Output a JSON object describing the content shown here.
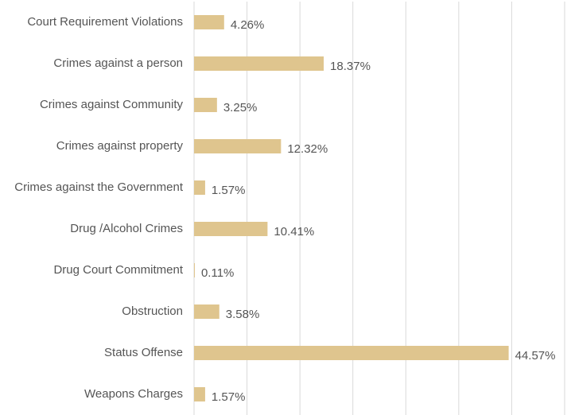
{
  "chart_data": {
    "type": "bar",
    "orientation": "horizontal",
    "categories": [
      "Court Requirement Violations",
      "Crimes against a person",
      "Crimes against Community",
      "Crimes against property",
      "Crimes against the Government",
      "Drug /Alcohol Crimes",
      "Drug Court Commitment",
      "Obstruction",
      "Status Offense",
      "Weapons Charges"
    ],
    "values": [
      4.26,
      18.37,
      3.25,
      12.32,
      1.57,
      10.41,
      0.11,
      3.58,
      44.57,
      1.57
    ],
    "value_labels": [
      "4.26%",
      "18.37%",
      "3.25%",
      "12.32%",
      "1.57%",
      "10.41%",
      "0.11%",
      "3.58%",
      "44.57%",
      "1.57%"
    ],
    "color": "#dfc58e",
    "xlim": [
      0,
      52.5
    ],
    "xticks": [
      0,
      7.5,
      15,
      22.5,
      30,
      37.5,
      45,
      52.5
    ],
    "grid": true
  }
}
